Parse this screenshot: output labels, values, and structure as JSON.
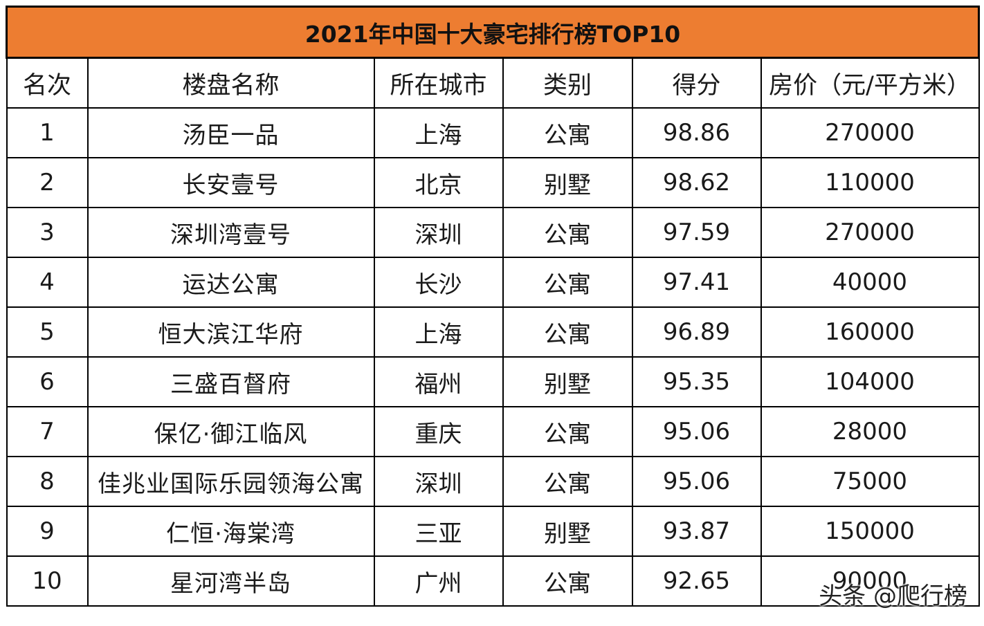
{
  "title": "2021年中国十大豪宅排行榜TOP10",
  "colors": {
    "title_bg": "#ED7D31",
    "border": "#000000"
  },
  "headers": [
    "名次",
    "楼盘名称",
    "所在城市",
    "类别",
    "得分",
    "房价（元/平方米）"
  ],
  "rows": [
    {
      "rank": "1",
      "name": "汤臣一品",
      "city": "上海",
      "type": "公寓",
      "score": "98.86",
      "price": "270000"
    },
    {
      "rank": "2",
      "name": "长安壹号",
      "city": "北京",
      "type": "别墅",
      "score": "98.62",
      "price": "110000"
    },
    {
      "rank": "3",
      "name": "深圳湾壹号",
      "city": "深圳",
      "type": "公寓",
      "score": "97.59",
      "price": "270000"
    },
    {
      "rank": "4",
      "name": "运达公寓",
      "city": "长沙",
      "type": "公寓",
      "score": "97.41",
      "price": "40000"
    },
    {
      "rank": "5",
      "name": "恒大滨江华府",
      "city": "上海",
      "type": "公寓",
      "score": "96.89",
      "price": "160000"
    },
    {
      "rank": "6",
      "name": "三盛百督府",
      "city": "福州",
      "type": "别墅",
      "score": "95.35",
      "price": "104000"
    },
    {
      "rank": "7",
      "name": "保亿·御江临风",
      "city": "重庆",
      "type": "公寓",
      "score": "95.06",
      "price": "28000"
    },
    {
      "rank": "8",
      "name": "佳兆业国际乐园领海公寓",
      "city": "深圳",
      "type": "公寓",
      "score": "95.06",
      "price": "75000"
    },
    {
      "rank": "9",
      "name": "仁恒·海棠湾",
      "city": "三亚",
      "type": "别墅",
      "score": "93.87",
      "price": "150000"
    },
    {
      "rank": "10",
      "name": "星河湾半岛",
      "city": "广州",
      "type": "公寓",
      "score": "92.65",
      "price": "90000"
    }
  ],
  "watermark": "头条 @爬行榜"
}
